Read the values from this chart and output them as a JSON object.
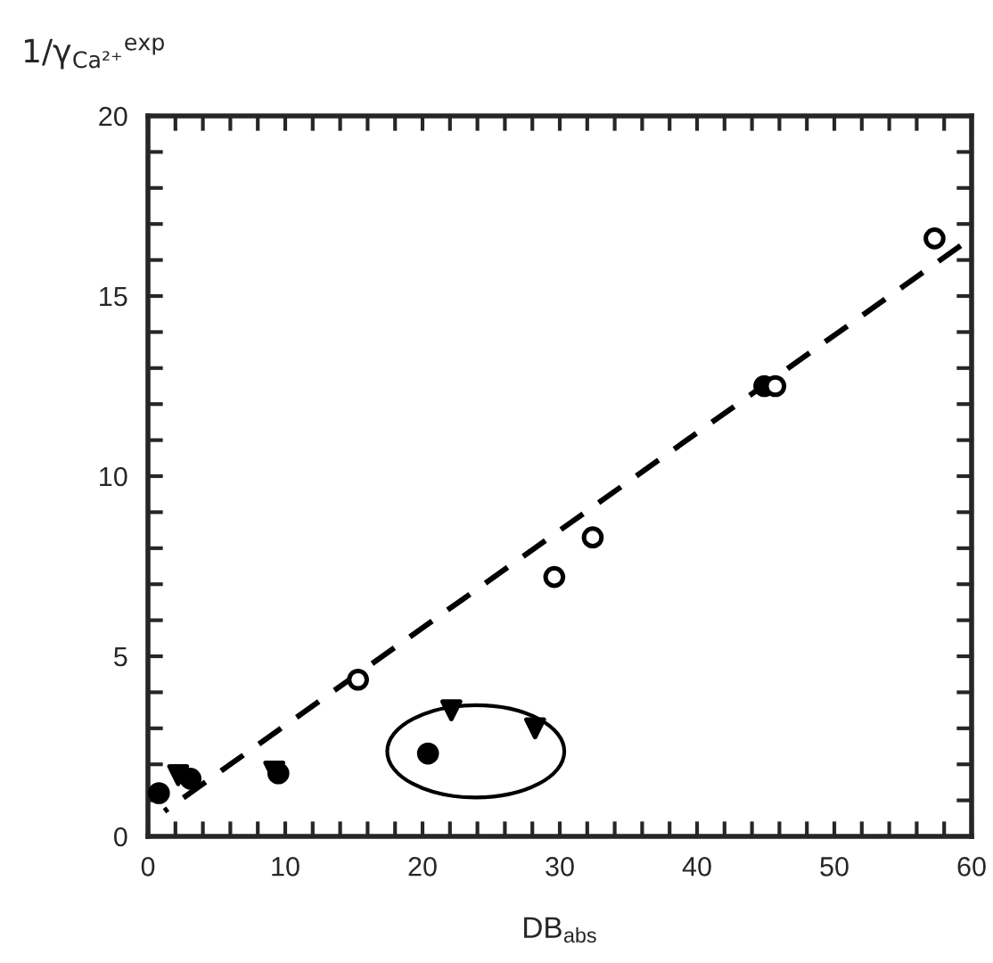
{
  "chart_data": {
    "type": "scatter",
    "xlabel": "DB$_{abs}$",
    "ylabel": "1/γ$_{Ca²⁺}$$^{exp}$",
    "xlim": [
      0,
      60
    ],
    "ylim": [
      0,
      20
    ],
    "xticks": [
      0,
      {
        "value": 2,
        "label": null
      },
      {
        "value": 4,
        "label": null
      },
      {
        "value": 6,
        "label": null
      },
      {
        "value": 8,
        "label": null
      },
      10,
      {
        "value": 12,
        "label": null
      },
      {
        "value": 14,
        "label": null
      },
      {
        "value": 16,
        "label": null
      },
      {
        "value": 18,
        "label": null
      },
      20,
      {
        "value": 22,
        "label": null
      },
      {
        "value": 24,
        "label": null
      },
      {
        "value": 26,
        "label": null
      },
      {
        "value": 28,
        "label": null
      },
      30,
      {
        "value": 32,
        "label": null
      },
      {
        "value": 34,
        "label": null
      },
      {
        "value": 36,
        "label": null
      },
      {
        "value": 38,
        "label": null
      },
      40,
      {
        "value": 42,
        "label": null
      },
      {
        "value": 44,
        "label": null
      },
      {
        "value": 46,
        "label": null
      },
      {
        "value": 48,
        "label": null
      },
      50,
      {
        "value": 52,
        "label": null
      },
      {
        "value": 54,
        "label": null
      },
      {
        "value": 56,
        "label": null
      },
      {
        "value": 58,
        "label": null
      },
      60
    ],
    "yticks": [
      0,
      {
        "value": 1,
        "label": null
      },
      {
        "value": 2,
        "label": null
      },
      {
        "value": 3,
        "label": null
      },
      {
        "value": 4,
        "label": null
      },
      5,
      {
        "value": 6,
        "label": null
      },
      {
        "value": 7,
        "label": null
      },
      {
        "value": 8,
        "label": null
      },
      {
        "value": 9,
        "label": null
      },
      10,
      {
        "value": 11,
        "label": null
      },
      {
        "value": 12,
        "label": null
      },
      {
        "value": 13,
        "label": null
      },
      {
        "value": 14,
        "label": null
      },
      15,
      {
        "value": 16,
        "label": null
      },
      {
        "value": 17,
        "label": null
      },
      {
        "value": 18,
        "label": null
      },
      {
        "value": 19,
        "label": null
      },
      20
    ],
    "grid": false,
    "legend": false,
    "series": [
      {
        "marker": "circle",
        "color": "#000000",
        "x": [
          0.8,
          3.1,
          9.5,
          20.4,
          44.9
        ],
        "values": [
          1.2,
          1.6,
          1.75,
          2.3,
          12.5
        ]
      },
      {
        "marker": "triangle",
        "color": "#000000",
        "x": [
          2.2,
          9.2,
          22.1,
          28.2
        ],
        "values": [
          1.7,
          1.8,
          3.5,
          3.0
        ]
      },
      {
        "marker": "circle",
        "color": "#ffffff",
        "x": [
          15.3,
          29.6,
          32.4,
          45.7,
          57.3
        ],
        "values": [
          4.35,
          7.2,
          8.3,
          12.5,
          16.6
        ]
      },
      {
        "type": "line",
        "marker": "none",
        "line_style": "dashed",
        "color": "#000000",
        "x": [
          1.2,
          59.2
        ],
        "values": [
          0.7,
          16.4
        ]
      }
    ]
  }
}
